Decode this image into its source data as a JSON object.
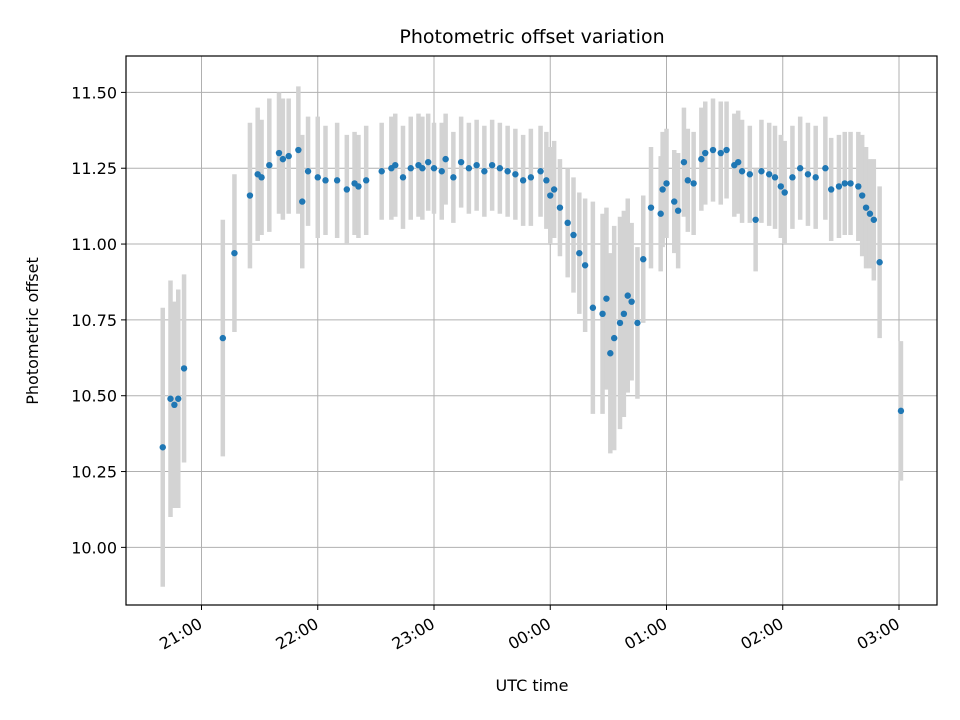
{
  "chart_data": {
    "type": "scatter",
    "title": "Photometric offset variation",
    "xlabel": "UTC time",
    "ylabel": "Photometric offset",
    "x_ticks": [
      "21:00",
      "22:00",
      "23:00",
      "00:00",
      "01:00",
      "02:00",
      "03:00"
    ],
    "y_ticks": [
      "10.00",
      "10.25",
      "10.50",
      "10.75",
      "11.00",
      "11.25",
      "11.50"
    ],
    "ylim": [
      9.81,
      11.62
    ],
    "grid": true,
    "legend": "none",
    "point_color": "#1f77b4",
    "error_color": "#d3d3d3",
    "series": [
      {
        "x": [
          "20:40",
          "20:44",
          "20:46",
          "20:48",
          "20:51",
          "21:11",
          "21:17",
          "21:25",
          "21:29",
          "21:31",
          "21:35",
          "21:40",
          "21:42",
          "21:45",
          "21:50",
          "21:52",
          "21:55",
          "22:00",
          "22:04",
          "22:10",
          "22:15",
          "22:19",
          "22:21",
          "22:25",
          "22:33",
          "22:38",
          "22:40",
          "22:44",
          "22:48",
          "22:52",
          "22:54",
          "22:57",
          "23:00",
          "23:04",
          "23:06",
          "23:10",
          "23:14",
          "23:18",
          "23:22",
          "23:26",
          "23:30",
          "23:34",
          "23:38",
          "23:42",
          "23:46",
          "23:50",
          "23:55",
          "23:58",
          "00:00",
          "00:02",
          "00:05",
          "00:09",
          "00:12",
          "00:15",
          "00:18",
          "00:22",
          "00:27",
          "00:29",
          "00:31",
          "00:33",
          "00:36",
          "00:38",
          "00:40",
          "00:42",
          "00:45",
          "00:48",
          "00:52",
          "00:57",
          "00:58",
          "01:00",
          "01:04",
          "01:06",
          "01:09",
          "01:11",
          "01:14",
          "01:18",
          "01:20",
          "01:24",
          "01:28",
          "01:31",
          "01:35",
          "01:37",
          "01:39",
          "01:43",
          "01:46",
          "01:49",
          "01:53",
          "01:56",
          "01:59",
          "02:01",
          "02:05",
          "02:09",
          "02:13",
          "02:17",
          "02:22",
          "02:25",
          "02:29",
          "02:32",
          "02:35",
          "02:39",
          "02:41",
          "02:43",
          "02:45",
          "02:47",
          "02:50",
          "03:01"
        ],
        "y": [
          10.33,
          10.49,
          10.47,
          10.49,
          10.59,
          10.69,
          10.97,
          11.16,
          11.23,
          11.22,
          11.26,
          11.3,
          11.28,
          11.29,
          11.31,
          11.14,
          11.24,
          11.22,
          11.21,
          11.21,
          11.18,
          11.2,
          11.19,
          11.21,
          11.24,
          11.25,
          11.26,
          11.22,
          11.25,
          11.26,
          11.25,
          11.27,
          11.25,
          11.24,
          11.28,
          11.22,
          11.27,
          11.25,
          11.26,
          11.24,
          11.26,
          11.25,
          11.24,
          11.23,
          11.21,
          11.22,
          11.24,
          11.21,
          11.16,
          11.18,
          11.12,
          11.07,
          11.03,
          10.97,
          10.93,
          10.79,
          10.77,
          10.82,
          10.64,
          10.69,
          10.74,
          10.77,
          10.83,
          10.81,
          10.74,
          10.95,
          11.12,
          11.1,
          11.18,
          11.2,
          11.14,
          11.11,
          11.27,
          11.21,
          11.2,
          11.28,
          11.3,
          11.31,
          11.3,
          11.31,
          11.26,
          11.27,
          11.24,
          11.23,
          11.08,
          11.24,
          11.23,
          11.22,
          11.19,
          11.17,
          11.22,
          11.25,
          11.23,
          11.22,
          11.25,
          11.18,
          11.19,
          11.2,
          11.2,
          11.19,
          11.16,
          11.12,
          11.1,
          11.08,
          10.94,
          10.45
        ],
        "err": [
          0.46,
          0.39,
          0.34,
          0.36,
          0.31,
          0.39,
          0.26,
          0.24,
          0.22,
          0.19,
          0.22,
          0.2,
          0.2,
          0.19,
          0.21,
          0.22,
          0.18,
          0.2,
          0.18,
          0.19,
          0.18,
          0.17,
          0.17,
          0.18,
          0.16,
          0.17,
          0.17,
          0.17,
          0.17,
          0.17,
          0.17,
          0.16,
          0.15,
          0.16,
          0.15,
          0.15,
          0.15,
          0.15,
          0.15,
          0.15,
          0.15,
          0.15,
          0.15,
          0.15,
          0.15,
          0.16,
          0.15,
          0.16,
          0.16,
          0.16,
          0.16,
          0.18,
          0.19,
          0.2,
          0.22,
          0.35,
          0.33,
          0.3,
          0.33,
          0.37,
          0.35,
          0.34,
          0.32,
          0.26,
          0.25,
          0.21,
          0.2,
          0.19,
          0.19,
          0.18,
          0.17,
          0.19,
          0.18,
          0.17,
          0.17,
          0.17,
          0.17,
          0.17,
          0.17,
          0.16,
          0.17,
          0.17,
          0.17,
          0.16,
          0.17,
          0.17,
          0.17,
          0.17,
          0.17,
          0.17,
          0.17,
          0.17,
          0.17,
          0.17,
          0.17,
          0.17,
          0.17,
          0.17,
          0.17,
          0.18,
          0.2,
          0.2,
          0.18,
          0.2,
          0.25,
          0.23
        ]
      }
    ]
  }
}
